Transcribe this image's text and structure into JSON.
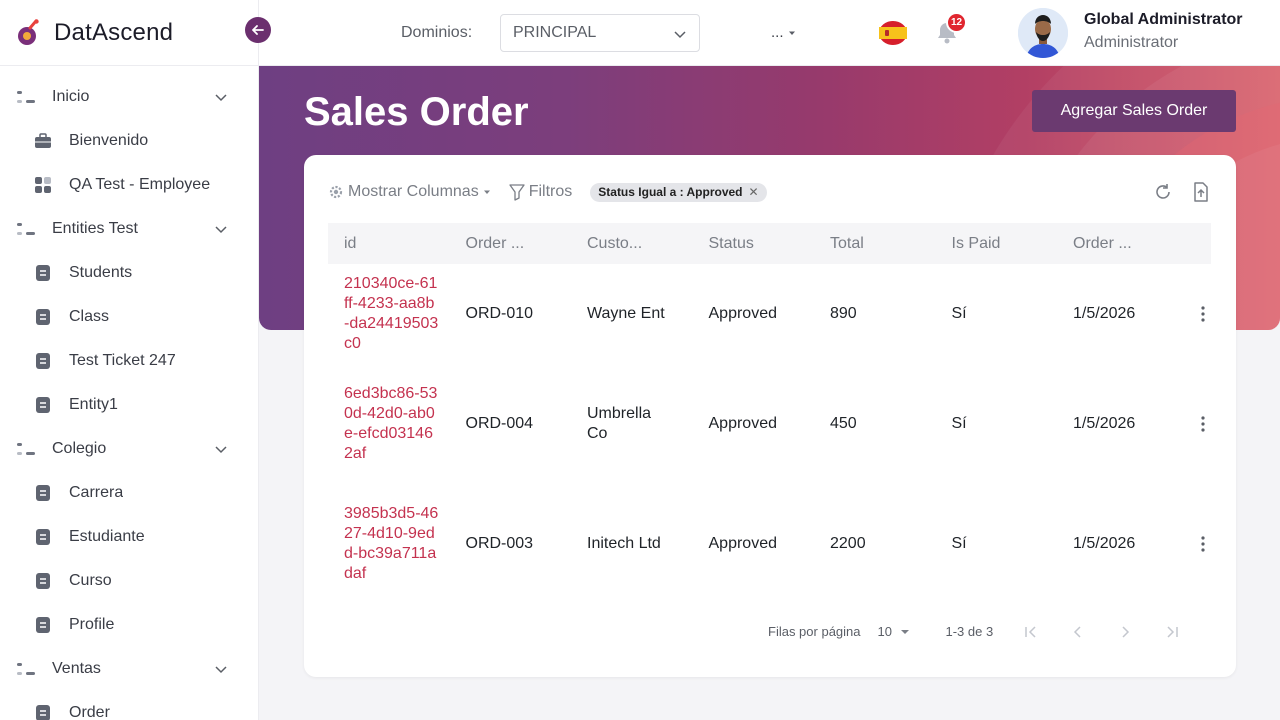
{
  "brand": {
    "name": "DatAscend"
  },
  "sidebar": {
    "groups": [
      {
        "label": "Inicio",
        "items": [
          {
            "label": "Bienvenido",
            "icon": "briefcase-icon"
          },
          {
            "label": "QA Test - Employee",
            "icon": "grid-icon"
          }
        ]
      },
      {
        "label": "Entities Test",
        "items": [
          {
            "label": "Students",
            "icon": "document-icon"
          },
          {
            "label": "Class",
            "icon": "document-icon"
          },
          {
            "label": "Test Ticket 247",
            "icon": "document-icon"
          },
          {
            "label": "Entity1",
            "icon": "document-icon"
          }
        ]
      },
      {
        "label": "Colegio",
        "items": [
          {
            "label": "Carrera",
            "icon": "document-icon"
          },
          {
            "label": "Estudiante",
            "icon": "document-icon"
          },
          {
            "label": "Curso",
            "icon": "document-icon"
          },
          {
            "label": "Profile",
            "icon": "document-icon"
          }
        ]
      },
      {
        "label": "Ventas",
        "items": [
          {
            "label": "Order",
            "icon": "document-icon"
          }
        ]
      }
    ]
  },
  "topbar": {
    "domain_label": "Dominios:",
    "domain_value": "PRINCIPAL",
    "more_label": "...",
    "notification_count": "12",
    "user_name": "Global Administrator",
    "user_role": "Administrator"
  },
  "page": {
    "title": "Sales Order",
    "add_button": "Agregar Sales Order"
  },
  "toolbar": {
    "columns_label": "Mostrar Columnas",
    "filters_label": "Filtros",
    "filter_chip": "Status Igual a : Approved"
  },
  "table": {
    "headers": [
      "id",
      "Order ...",
      "Custo...",
      "Status",
      "Total",
      "Is Paid",
      "Order ..."
    ],
    "rows": [
      {
        "id": "210340ce-61ff-4233-aa8b-da24419503c0",
        "order": "ORD-010",
        "customer": "Wayne Ent",
        "status": "Approved",
        "total": "890",
        "paid": "Sí",
        "date": "1/5/2026"
      },
      {
        "id": "6ed3bc86-530d-42d0-ab0e-efcd031462af",
        "order": "ORD-004",
        "customer": "Umbrella Co",
        "status": "Approved",
        "total": "450",
        "paid": "Sí",
        "date": "1/5/2026"
      },
      {
        "id": "3985b3d5-4627-4d10-9edd-bc39a711adaf",
        "order": "ORD-003",
        "customer": "Initech Ltd",
        "status": "Approved",
        "total": "2200",
        "paid": "Sí",
        "date": "1/5/2026"
      }
    ]
  },
  "pagination": {
    "rows_per_page_label": "Filas por página",
    "rows_per_page": "10",
    "range": "1-3 de 3"
  },
  "colors": {
    "accent": "#6b3a70",
    "id_link": "#c4324f",
    "badge": "#e0262f"
  }
}
